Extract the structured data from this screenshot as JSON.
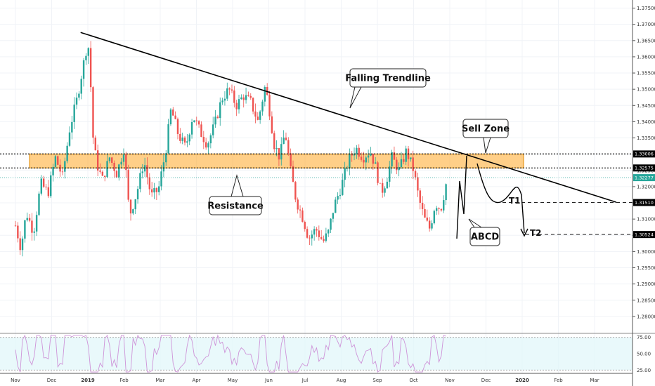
{
  "chart_data": {
    "type": "candlestick",
    "instrument_price_axis": {
      "ylim": [
        1.275,
        1.3775
      ],
      "ticks": [
        "1.37500",
        "1.37000",
        "1.36500",
        "1.36000",
        "1.35500",
        "1.35000",
        "1.34500",
        "1.34000",
        "1.33500",
        "1.33000",
        "1.32500",
        "1.32000",
        "1.31500",
        "1.31000",
        "1.30500",
        "1.30000",
        "1.29500",
        "1.29000",
        "1.28500",
        "1.28000"
      ]
    },
    "x_axis": {
      "labels": [
        "Nov",
        "Dec",
        "2019",
        "Feb",
        "Mar",
        "Apr",
        "May",
        "Jun",
        "Jul",
        "Aug",
        "Sep",
        "Oct",
        "Nov",
        "Dec",
        "2020",
        "Feb",
        "Mar"
      ],
      "bold_labels": [
        "2019",
        "2020"
      ]
    },
    "price_levels": [
      {
        "label": "1.33006",
        "value": 1.33006,
        "color": "#000000"
      },
      {
        "label": "1.32575",
        "value": 1.32575,
        "color": "#000000"
      },
      {
        "label": "1.32277",
        "value": 1.32277,
        "color": "#26a69a"
      },
      {
        "label": "1.31510",
        "value": 1.3151,
        "color": "#000000"
      },
      {
        "label": "1.30524",
        "value": 1.30524,
        "color": "#000000"
      }
    ],
    "resistance_zone": {
      "top": 1.33006,
      "bottom": 1.32575,
      "color": "#ffa726"
    },
    "trendline": {
      "from": {
        "month_index": 1.8,
        "price": 1.3675
      },
      "to": {
        "month_index": 16.6,
        "price": 1.3152
      }
    },
    "annotations": {
      "falling_trendline": "Falling Trendline",
      "sell_zone": "Sell Zone",
      "resistance": "Resistance",
      "abcd": "ABCD",
      "t1": "T1",
      "t2": "T2"
    },
    "price_path": [
      {
        "m": 0.0,
        "p": 1.308
      },
      {
        "m": 0.15,
        "p": 1.301
      },
      {
        "m": 0.3,
        "p": 1.312
      },
      {
        "m": 0.5,
        "p": 1.306
      },
      {
        "m": 0.7,
        "p": 1.321
      },
      {
        "m": 0.9,
        "p": 1.318
      },
      {
        "m": 1.1,
        "p": 1.329
      },
      {
        "m": 1.3,
        "p": 1.323
      },
      {
        "m": 1.5,
        "p": 1.338
      },
      {
        "m": 1.7,
        "p": 1.347
      },
      {
        "m": 1.85,
        "p": 1.356
      },
      {
        "m": 2.0,
        "p": 1.365
      },
      {
        "m": 2.05,
        "p": 1.358
      },
      {
        "m": 2.15,
        "p": 1.334
      },
      {
        "m": 2.25,
        "p": 1.327
      },
      {
        "m": 2.4,
        "p": 1.322
      },
      {
        "m": 2.6,
        "p": 1.329
      },
      {
        "m": 2.8,
        "p": 1.324
      },
      {
        "m": 3.0,
        "p": 1.332
      },
      {
        "m": 3.15,
        "p": 1.311
      },
      {
        "m": 3.35,
        "p": 1.318
      },
      {
        "m": 3.55,
        "p": 1.328
      },
      {
        "m": 3.75,
        "p": 1.317
      },
      {
        "m": 3.95,
        "p": 1.319
      },
      {
        "m": 4.15,
        "p": 1.331
      },
      {
        "m": 4.3,
        "p": 1.344
      },
      {
        "m": 4.5,
        "p": 1.336
      },
      {
        "m": 4.7,
        "p": 1.332
      },
      {
        "m": 4.9,
        "p": 1.342
      },
      {
        "m": 5.1,
        "p": 1.337
      },
      {
        "m": 5.3,
        "p": 1.333
      },
      {
        "m": 5.5,
        "p": 1.339
      },
      {
        "m": 5.7,
        "p": 1.347
      },
      {
        "m": 5.9,
        "p": 1.35
      },
      {
        "m": 6.1,
        "p": 1.345
      },
      {
        "m": 6.3,
        "p": 1.348
      },
      {
        "m": 6.5,
        "p": 1.346
      },
      {
        "m": 6.7,
        "p": 1.34
      },
      {
        "m": 6.9,
        "p": 1.351
      },
      {
        "m": 7.0,
        "p": 1.345
      },
      {
        "m": 7.15,
        "p": 1.333
      },
      {
        "m": 7.3,
        "p": 1.329
      },
      {
        "m": 7.45,
        "p": 1.337
      },
      {
        "m": 7.6,
        "p": 1.325
      },
      {
        "m": 7.75,
        "p": 1.316
      },
      {
        "m": 7.95,
        "p": 1.31
      },
      {
        "m": 8.1,
        "p": 1.304
      },
      {
        "m": 8.3,
        "p": 1.307
      },
      {
        "m": 8.5,
        "p": 1.303
      },
      {
        "m": 8.65,
        "p": 1.306
      },
      {
        "m": 8.8,
        "p": 1.314
      },
      {
        "m": 9.0,
        "p": 1.32
      },
      {
        "m": 9.2,
        "p": 1.328
      },
      {
        "m": 9.4,
        "p": 1.332
      },
      {
        "m": 9.6,
        "p": 1.329
      },
      {
        "m": 9.8,
        "p": 1.331
      },
      {
        "m": 9.95,
        "p": 1.326
      },
      {
        "m": 10.1,
        "p": 1.318
      },
      {
        "m": 10.25,
        "p": 1.322
      },
      {
        "m": 10.4,
        "p": 1.329
      },
      {
        "m": 10.6,
        "p": 1.325
      },
      {
        "m": 10.8,
        "p": 1.331
      },
      {
        "m": 11.0,
        "p": 1.325
      },
      {
        "m": 11.15,
        "p": 1.316
      },
      {
        "m": 11.3,
        "p": 1.31
      },
      {
        "m": 11.45,
        "p": 1.307
      },
      {
        "m": 11.6,
        "p": 1.315
      },
      {
        "m": 11.75,
        "p": 1.313
      },
      {
        "m": 11.9,
        "p": 1.321
      }
    ],
    "oscillator": {
      "ylim": [
        20,
        80
      ],
      "ticks": [
        "75.00",
        "50.00",
        "25.00"
      ],
      "upper": 75,
      "lower": 25,
      "color": "#e1bee7"
    }
  }
}
